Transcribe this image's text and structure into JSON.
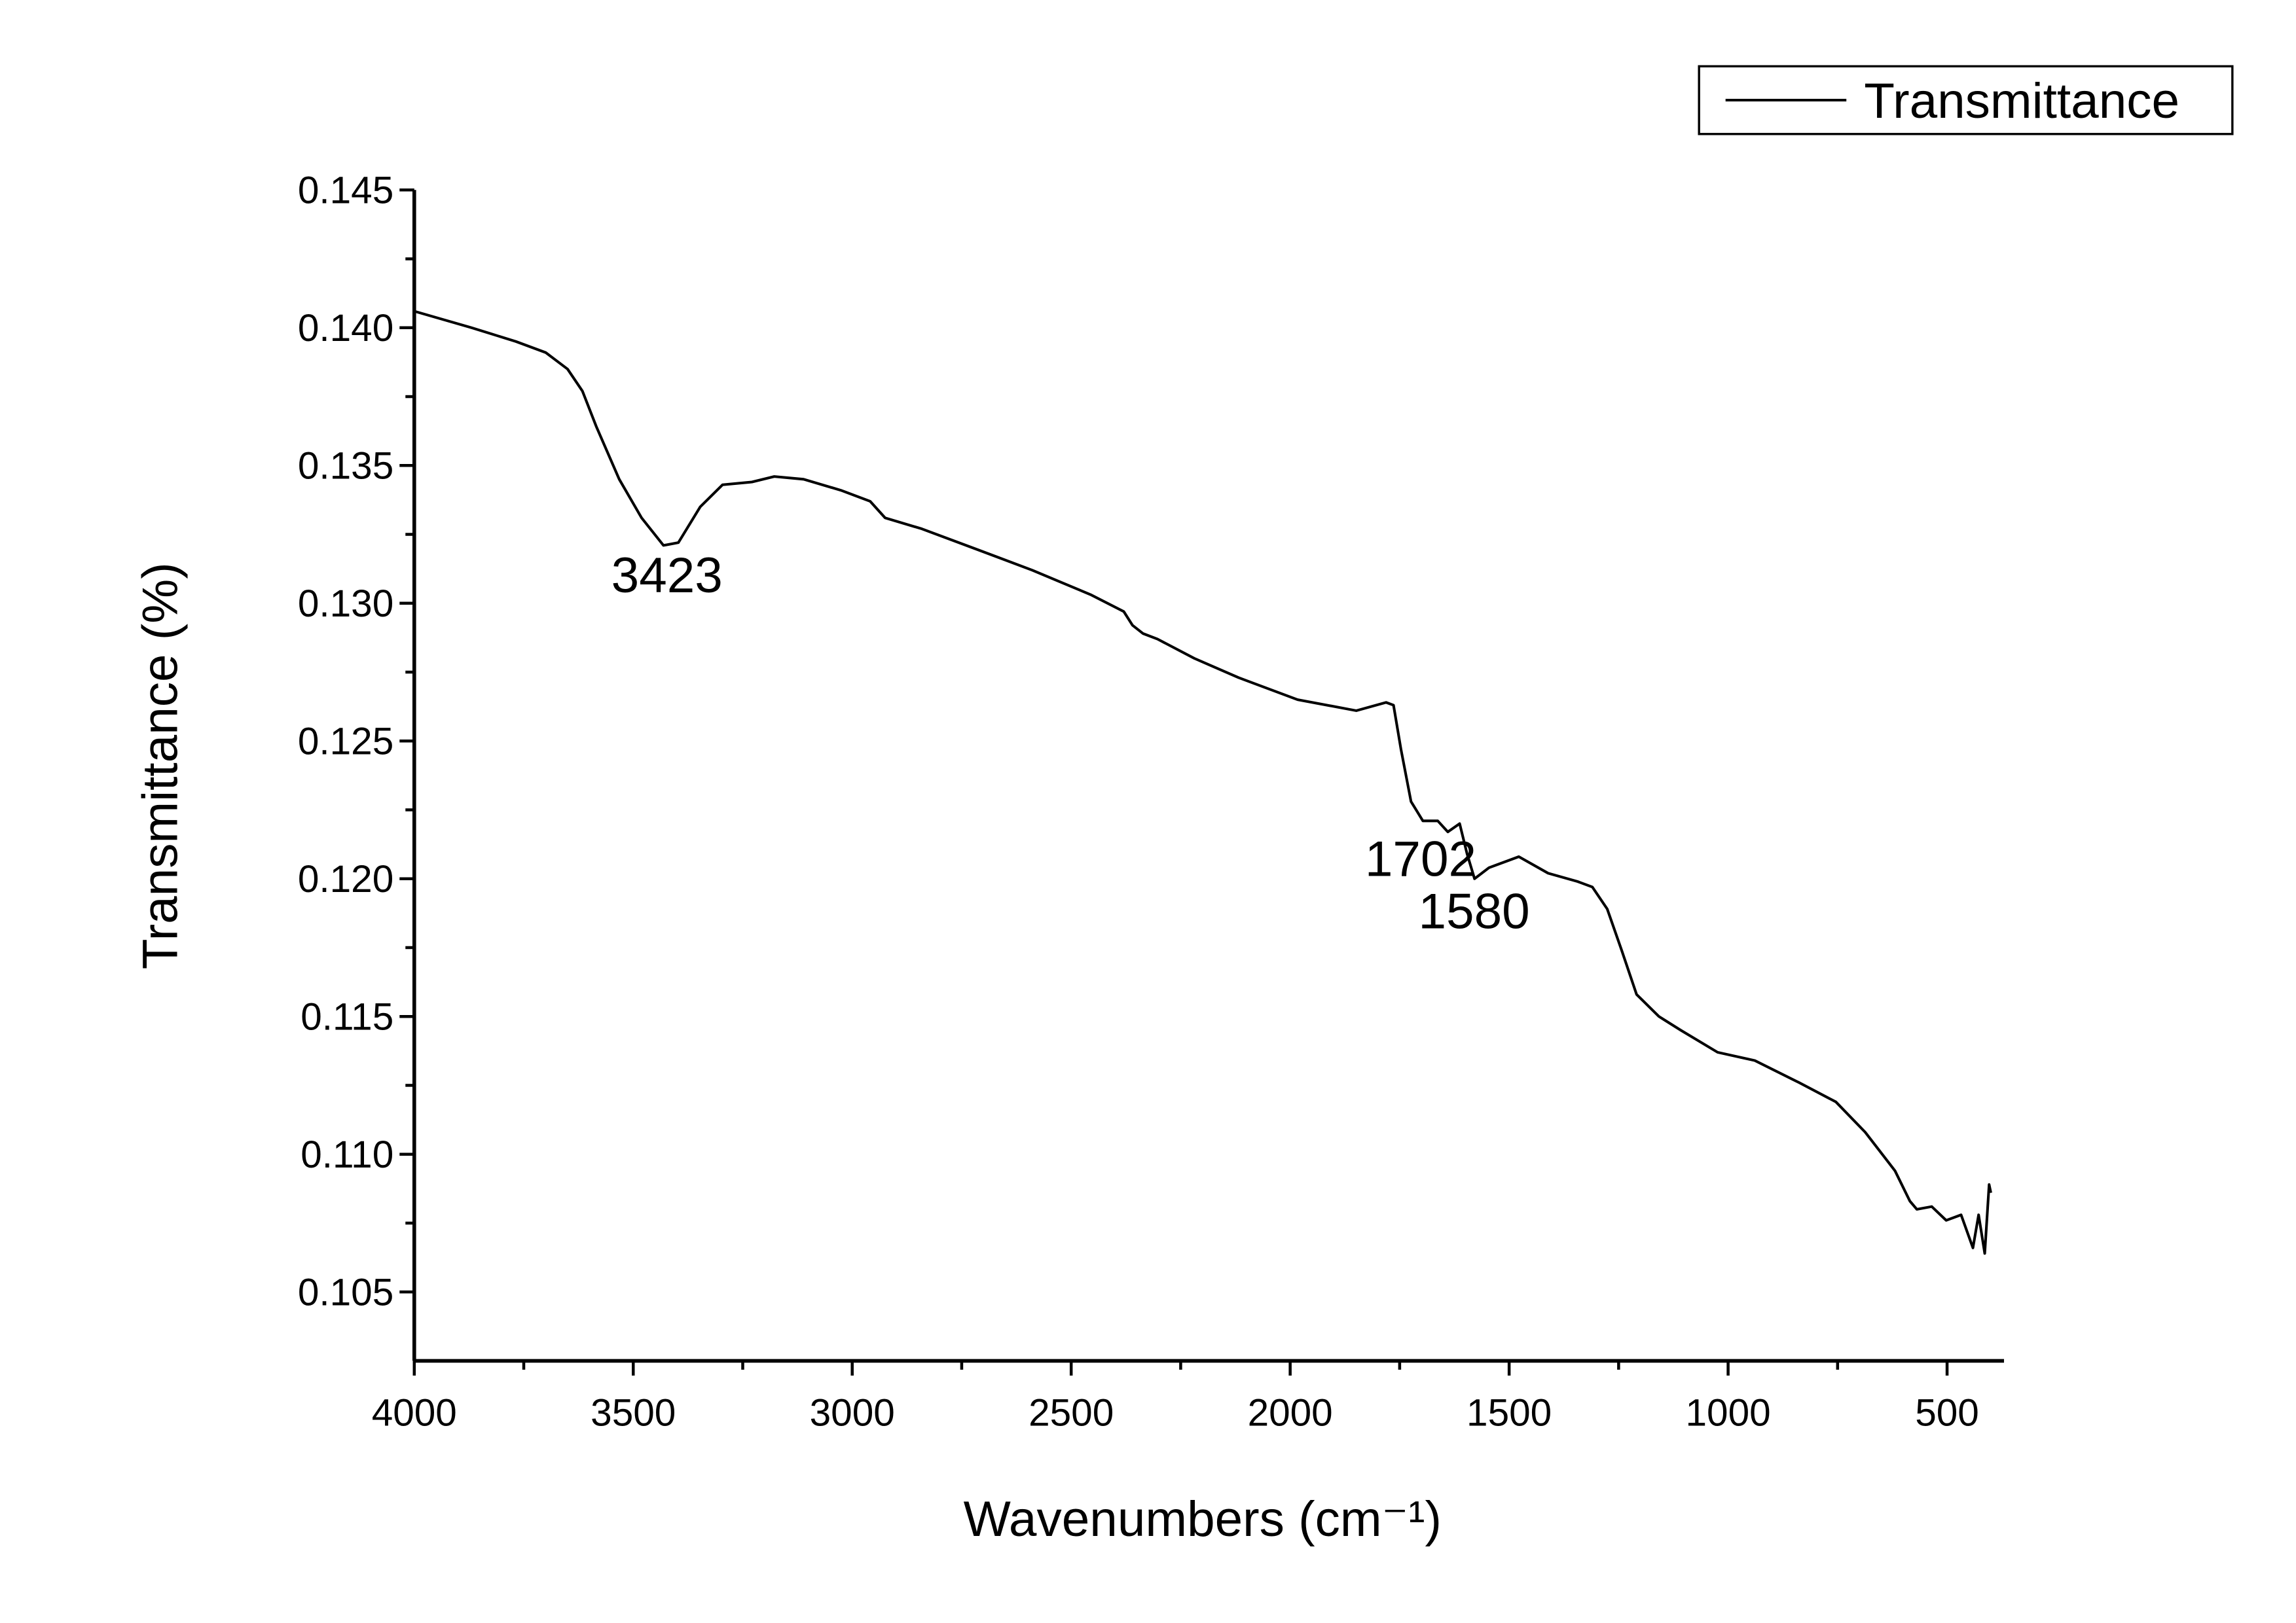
{
  "chart_data": {
    "type": "line",
    "xlabel": "Wavenumbers (cm⁻¹)",
    "ylabel": "Transmittance (%)",
    "x": [
      4000,
      3869,
      3768,
      3700,
      3650,
      3616,
      3584,
      3532,
      3481,
      3431,
      3397,
      3347,
      3296,
      3229,
      3178,
      3111,
      3026,
      2959,
      2925,
      2841,
      2723,
      2589,
      2454,
      2380,
      2360,
      2336,
      2303,
      2219,
      2118,
      1983,
      1849,
      1781,
      1764,
      1747,
      1724,
      1697,
      1663,
      1640,
      1613,
      1596,
      1579,
      1546,
      1478,
      1411,
      1344,
      1310,
      1276,
      1243,
      1209,
      1158,
      1108,
      1024,
      939,
      838,
      754,
      687,
      619,
      585,
      569,
      535,
      502,
      468,
      441,
      428,
      414,
      404,
      400
    ],
    "series": [
      {
        "name": "Transmittance",
        "color": "#000000",
        "values": [
          0.1406,
          0.14,
          0.1395,
          0.1391,
          0.1385,
          0.1377,
          0.1364,
          0.1345,
          0.1331,
          0.1321,
          0.1322,
          0.1335,
          0.1343,
          0.1344,
          0.1346,
          0.1345,
          0.1341,
          0.1337,
          0.1331,
          0.1327,
          0.132,
          0.1312,
          0.1303,
          0.1297,
          0.1292,
          0.1289,
          0.1287,
          0.128,
          0.1273,
          0.1265,
          0.1261,
          0.1264,
          0.1263,
          0.1247,
          0.1228,
          0.1221,
          0.1221,
          0.1217,
          0.122,
          0.1209,
          0.12,
          0.1204,
          0.1208,
          0.1202,
          0.1199,
          0.1197,
          0.1189,
          0.1174,
          0.1158,
          0.115,
          0.1145,
          0.1137,
          0.1134,
          0.1126,
          0.1119,
          0.1108,
          0.1094,
          0.1083,
          0.108,
          0.1081,
          0.1076,
          0.1078,
          0.1066,
          0.1078,
          0.1064,
          0.1089,
          0.1086
        ]
      }
    ],
    "xlim": [
      4000,
      370
    ],
    "xticks": [
      4000,
      3500,
      3000,
      2500,
      2000,
      1500,
      1000,
      500
    ],
    "ylim": [
      0.1025,
      0.145
    ],
    "yticks": [
      0.105,
      {
        "value": 0.11,
        "label": "0.110"
      },
      0.115,
      {
        "value": 0.12,
        "label": "0.120"
      },
      0.125,
      {
        "value": 0.13,
        "label": "0.130"
      },
      0.135,
      {
        "value": 0.14,
        "label": "0.140"
      },
      0.145
    ],
    "annotations": [
      {
        "text": "3423",
        "x": 3423,
        "y": 0.1304
      },
      {
        "text": "1702",
        "x": 1702,
        "y": 0.1201
      },
      {
        "text": "1580",
        "x": 1580,
        "y": 0.1182
      }
    ],
    "legend": "top-right",
    "grid": false
  }
}
